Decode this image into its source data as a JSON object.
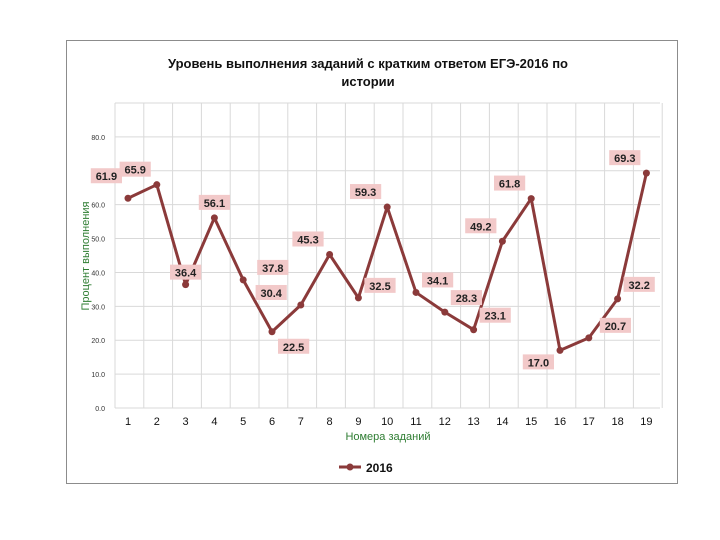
{
  "chart_data": {
    "type": "line",
    "title_lines": [
      "Уровень выполнения заданий с кратким ответом ЕГЭ-2016 по",
      "истории"
    ],
    "xlabel": "Номера заданий",
    "ylabel": "Процент выполнения",
    "ylim": [
      0,
      90
    ],
    "yticks": [
      "0.0",
      "10.0",
      "20.0",
      "30.0",
      "40.0",
      "50.0",
      "60.0",
      "70.0",
      "80.0"
    ],
    "categories": [
      "1",
      "2",
      "3",
      "4",
      "5",
      "6",
      "7",
      "8",
      "9",
      "10",
      "11",
      "12",
      "13",
      "14",
      "15",
      "16",
      "17",
      "18",
      "19"
    ],
    "series": [
      {
        "name": "2016",
        "color": "#8b3a3a",
        "values": [
          61.9,
          65.9,
          36.4,
          56.1,
          37.8,
          22.5,
          30.4,
          45.3,
          32.5,
          59.3,
          34.1,
          28.3,
          23.1,
          49.2,
          61.8,
          17.0,
          20.7,
          32.2,
          69.3
        ],
        "labels": [
          "61.9",
          "65.9",
          "36.4",
          "56.1",
          "37.8",
          "22.5",
          "30.4",
          "45.3",
          "32.5",
          "59.3",
          "34.1",
          "28.3",
          "23.1",
          "49.2",
          "61.8",
          "17.0",
          "20.7",
          "32.2",
          "69.3"
        ]
      }
    ],
    "grid": true,
    "legend_position": "bottom",
    "colors": {
      "line": "#8b3a3a",
      "label_bg": "#f2c9c9",
      "grid": "#d9d9d9"
    }
  }
}
